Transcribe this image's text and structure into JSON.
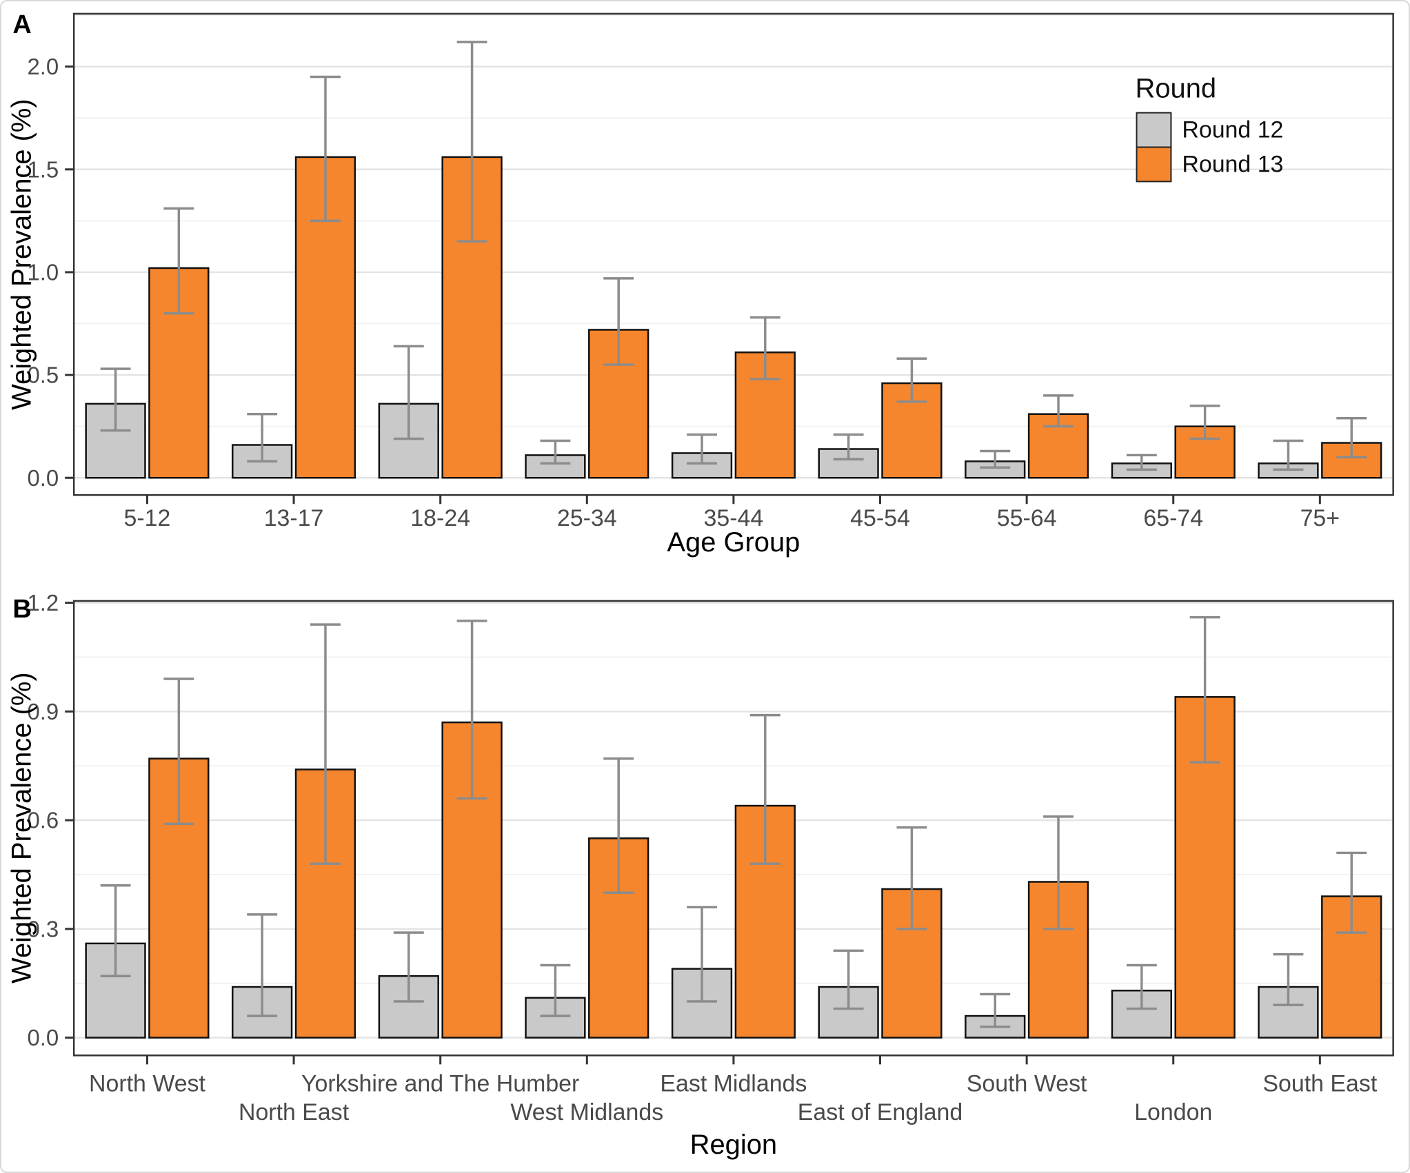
{
  "figure": {
    "panels": [
      {
        "label": "A"
      },
      {
        "label": "B"
      }
    ],
    "legend": {
      "title": "Round",
      "entries": [
        {
          "label": "Round 12",
          "color": "#C9C9C9"
        },
        {
          "label": "Round 13",
          "color": "#F6862D"
        }
      ]
    }
  },
  "colors": {
    "round12": "#C9C9C9",
    "round13": "#F6862D",
    "bar_outline": "#111111",
    "error_bar": "#8C8C8C",
    "grid_major": "#E4E4E4",
    "grid_minor": "#F2F2F2",
    "panel_border": "#333333",
    "tick": "#333333",
    "tick_label": "#4A4A4A",
    "axis_title": "#000000",
    "background": "#FFFFFF"
  },
  "chart_data": [
    {
      "type": "bar",
      "panel_label": "A",
      "xlabel": "Age Group",
      "ylabel": "Weighted Prevalence (%)",
      "ylim": [
        -0.084,
        2.257
      ],
      "yticks": [
        {
          "value": 0.0,
          "label": "0.0"
        },
        {
          "value": 0.5,
          "label": "0.5"
        },
        {
          "value": 1.0,
          "label": "1.0"
        },
        {
          "value": 1.5,
          "label": "1.5"
        },
        {
          "value": 2.0,
          "label": "2.0"
        }
      ],
      "minor_gridlines": [
        0.25,
        0.75,
        1.25,
        1.75,
        2.25
      ],
      "grid": true,
      "legend_position": "top-right",
      "categories": [
        "5-12",
        "13-17",
        "18-24",
        "25-34",
        "35-44",
        "45-54",
        "55-64",
        "65-74",
        "75+"
      ],
      "series": [
        {
          "name": "Round 12",
          "color_key": "round12",
          "values": [
            0.36,
            0.16,
            0.36,
            0.11,
            0.12,
            0.14,
            0.08,
            0.07,
            0.07
          ],
          "ci_low": [
            0.23,
            0.08,
            0.19,
            0.07,
            0.07,
            0.09,
            0.05,
            0.04,
            0.04
          ],
          "ci_high": [
            0.53,
            0.31,
            0.64,
            0.18,
            0.21,
            0.21,
            0.13,
            0.11,
            0.18
          ]
        },
        {
          "name": "Round 13",
          "color_key": "round13",
          "values": [
            1.02,
            1.56,
            1.56,
            0.72,
            0.61,
            0.46,
            0.31,
            0.25,
            0.17
          ],
          "ci_low": [
            0.8,
            1.25,
            1.15,
            0.55,
            0.48,
            0.37,
            0.25,
            0.19,
            0.1
          ],
          "ci_high": [
            1.31,
            1.95,
            2.12,
            0.97,
            0.78,
            0.58,
            0.4,
            0.35,
            0.29
          ]
        }
      ]
    },
    {
      "type": "bar",
      "panel_label": "B",
      "xlabel": "Region",
      "ylabel": "Weighted Prevalence (%)",
      "ylim": [
        -0.049,
        1.205
      ],
      "yticks": [
        {
          "value": 0.0,
          "label": "0.0"
        },
        {
          "value": 0.3,
          "label": "0.3"
        },
        {
          "value": 0.6,
          "label": "0.6"
        },
        {
          "value": 0.9,
          "label": "0.9"
        },
        {
          "value": 1.2,
          "label": "1.2"
        }
      ],
      "minor_gridlines": [
        0.15,
        0.45,
        0.75,
        1.05
      ],
      "grid": true,
      "staggered_x_labels": true,
      "categories": [
        "North West",
        "North East",
        "Yorkshire and The Humber",
        "West Midlands",
        "East Midlands",
        "East of England",
        "South West",
        "London",
        "South East"
      ],
      "series": [
        {
          "name": "Round 12",
          "color_key": "round12",
          "values": [
            0.26,
            0.14,
            0.17,
            0.11,
            0.19,
            0.14,
            0.06,
            0.13,
            0.14
          ],
          "ci_low": [
            0.17,
            0.06,
            0.1,
            0.06,
            0.1,
            0.08,
            0.03,
            0.08,
            0.09
          ],
          "ci_high": [
            0.42,
            0.34,
            0.29,
            0.2,
            0.36,
            0.24,
            0.12,
            0.2,
            0.23
          ]
        },
        {
          "name": "Round 13",
          "color_key": "round13",
          "values": [
            0.77,
            0.74,
            0.87,
            0.55,
            0.64,
            0.41,
            0.43,
            0.94,
            0.39
          ],
          "ci_low": [
            0.59,
            0.48,
            0.66,
            0.4,
            0.48,
            0.3,
            0.3,
            0.76,
            0.29
          ],
          "ci_high": [
            0.99,
            1.14,
            1.15,
            0.77,
            0.89,
            0.58,
            0.61,
            1.16,
            0.51
          ]
        }
      ]
    }
  ]
}
